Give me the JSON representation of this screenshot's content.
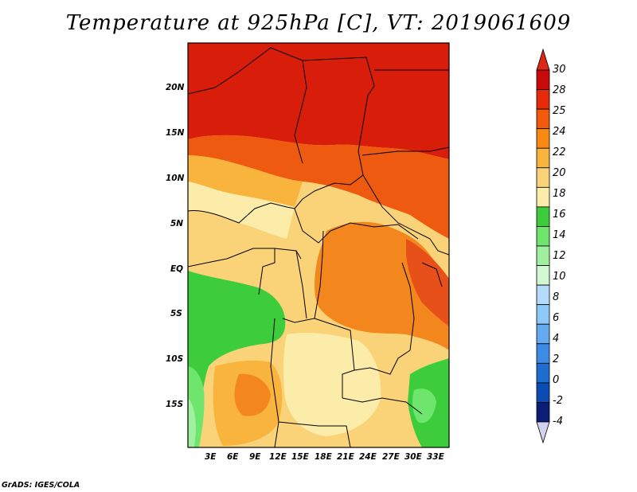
{
  "title": "Temperature at 925hPa [C], VT: 2019061609",
  "footer": "GrADS: IGES/COLA",
  "map": {
    "lat_labels": [
      "20N",
      "15N",
      "10N",
      "5N",
      "EQ",
      "5S",
      "10S",
      "15S"
    ],
    "lon_labels": [
      "3E",
      "6E",
      "9E",
      "12E",
      "15E",
      "18E",
      "21E",
      "24E",
      "27E",
      "30E",
      "33E"
    ]
  },
  "colorbar": {
    "labels": [
      "30",
      "28",
      "25",
      "24",
      "22",
      "20",
      "18",
      "16",
      "14",
      "12",
      "10",
      "8",
      "6",
      "4",
      "2",
      "0",
      "-2",
      "-4"
    ],
    "colors": [
      "#c80a0a",
      "#e62a0a",
      "#f05a0a",
      "#f88a14",
      "#f8b43c",
      "#fad278",
      "#fcecaa",
      "#3ccc3c",
      "#6ee66e",
      "#a0f0a0",
      "#d2f8d2",
      "#b4dcfa",
      "#8cc8f8",
      "#64aaf0",
      "#3c8ce6",
      "#1e6ed2",
      "#0a4cb4",
      "#0a1e78"
    ],
    "top_triangle": "#dc2814",
    "bottom_triangle": "#d2d2f0"
  }
}
